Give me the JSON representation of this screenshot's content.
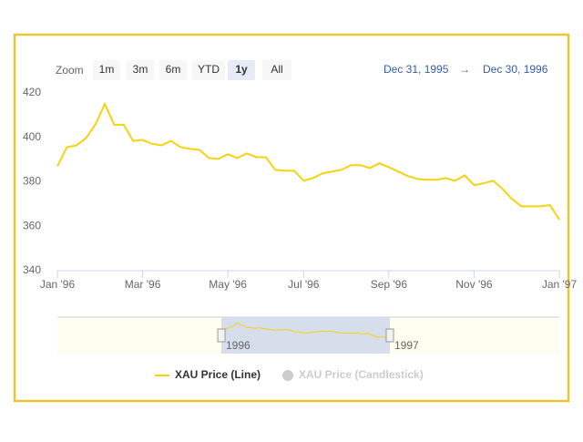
{
  "chart_data": {
    "type": "line",
    "categories": [
      "Jan '96",
      null,
      null,
      null,
      null,
      null,
      null,
      null,
      null,
      "Mar '96",
      null,
      null,
      null,
      null,
      null,
      null,
      null,
      null,
      "May '96",
      null,
      null,
      null,
      null,
      null,
      null,
      null,
      "Jul '96",
      null,
      null,
      null,
      null,
      null,
      null,
      null,
      null,
      "Sep '96",
      null,
      null,
      null,
      null,
      null,
      null,
      null,
      null,
      "Nov '96",
      null,
      null,
      null,
      null,
      null,
      null,
      null,
      null,
      "Jan '97"
    ],
    "series": [
      {
        "name": "XAU Price (Line)",
        "color": "#f5d30f",
        "values": [
          387,
          395.6,
          396.4,
          399.6,
          405.7,
          415,
          405.7,
          405.7,
          398.4,
          398.8,
          397.1,
          396.4,
          398.4,
          395.6,
          394.8,
          394.4,
          390.7,
          390.3,
          392.4,
          390.7,
          392.8,
          391.1,
          391.1,
          385.4,
          385,
          385,
          380.5,
          381.7,
          383.8,
          384.6,
          385.4,
          387.5,
          387.5,
          386.2,
          388.3,
          386.6,
          384.6,
          382.6,
          381.3,
          380.9,
          380.9,
          381.7,
          380.5,
          382.9,
          378.5,
          379.3,
          380.5,
          376.8,
          372.3,
          369,
          369,
          369,
          369.5,
          363
        ]
      }
    ],
    "hidden_series_names": [
      "XAU Price (Candlestick)"
    ],
    "ylim": [
      340,
      420
    ],
    "yticks": [
      340,
      360,
      380,
      400,
      420
    ],
    "grid": false,
    "range_selector": {
      "label": "Zoom",
      "buttons": [
        "1m",
        "3m",
        "6m",
        "YTD",
        "1y",
        "All"
      ],
      "selected": 4
    },
    "date_range": {
      "from": "Dec 31, 1995",
      "arrow": "→",
      "to": "Dec 30, 1996"
    },
    "navigator_labels": [
      "1996",
      "1997"
    ]
  }
}
